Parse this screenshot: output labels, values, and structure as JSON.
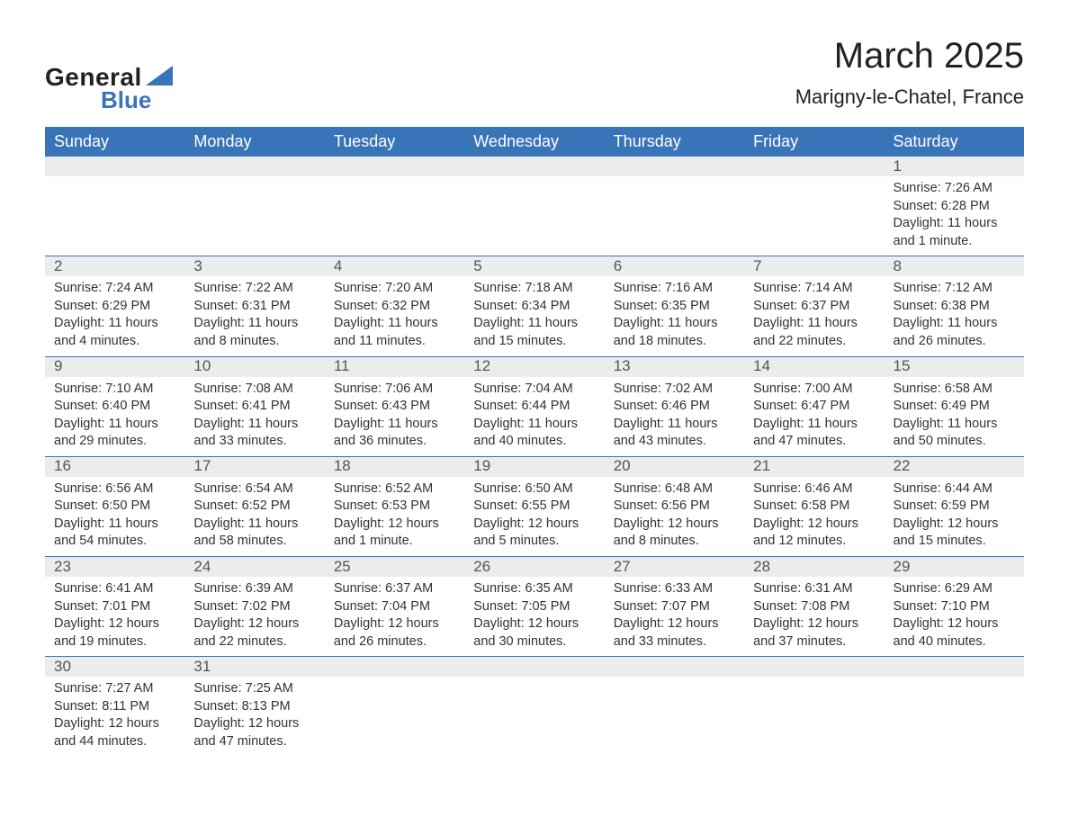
{
  "logo": {
    "text1": "General",
    "text2": "Blue",
    "accent_color": "#3a74b8"
  },
  "title": "March 2025",
  "location": "Marigny-le-Chatel, France",
  "colors": {
    "header_bg": "#3a74b8",
    "header_text": "#ffffff",
    "daynum_bg": "#ececec",
    "body_text": "#333333",
    "week_border": "#3a74b8"
  },
  "fonts": {
    "title_size_pt": 30,
    "location_size_pt": 17,
    "header_size_pt": 14,
    "body_size_pt": 11
  },
  "day_headers": [
    "Sunday",
    "Monday",
    "Tuesday",
    "Wednesday",
    "Thursday",
    "Friday",
    "Saturday"
  ],
  "weeks": [
    [
      null,
      null,
      null,
      null,
      null,
      null,
      {
        "n": "1",
        "sunrise": "Sunrise: 7:26 AM",
        "sunset": "Sunset: 6:28 PM",
        "daylight": "Daylight: 11 hours and 1 minute."
      }
    ],
    [
      {
        "n": "2",
        "sunrise": "Sunrise: 7:24 AM",
        "sunset": "Sunset: 6:29 PM",
        "daylight": "Daylight: 11 hours and 4 minutes."
      },
      {
        "n": "3",
        "sunrise": "Sunrise: 7:22 AM",
        "sunset": "Sunset: 6:31 PM",
        "daylight": "Daylight: 11 hours and 8 minutes."
      },
      {
        "n": "4",
        "sunrise": "Sunrise: 7:20 AM",
        "sunset": "Sunset: 6:32 PM",
        "daylight": "Daylight: 11 hours and 11 minutes."
      },
      {
        "n": "5",
        "sunrise": "Sunrise: 7:18 AM",
        "sunset": "Sunset: 6:34 PM",
        "daylight": "Daylight: 11 hours and 15 minutes."
      },
      {
        "n": "6",
        "sunrise": "Sunrise: 7:16 AM",
        "sunset": "Sunset: 6:35 PM",
        "daylight": "Daylight: 11 hours and 18 minutes."
      },
      {
        "n": "7",
        "sunrise": "Sunrise: 7:14 AM",
        "sunset": "Sunset: 6:37 PM",
        "daylight": "Daylight: 11 hours and 22 minutes."
      },
      {
        "n": "8",
        "sunrise": "Sunrise: 7:12 AM",
        "sunset": "Sunset: 6:38 PM",
        "daylight": "Daylight: 11 hours and 26 minutes."
      }
    ],
    [
      {
        "n": "9",
        "sunrise": "Sunrise: 7:10 AM",
        "sunset": "Sunset: 6:40 PM",
        "daylight": "Daylight: 11 hours and 29 minutes."
      },
      {
        "n": "10",
        "sunrise": "Sunrise: 7:08 AM",
        "sunset": "Sunset: 6:41 PM",
        "daylight": "Daylight: 11 hours and 33 minutes."
      },
      {
        "n": "11",
        "sunrise": "Sunrise: 7:06 AM",
        "sunset": "Sunset: 6:43 PM",
        "daylight": "Daylight: 11 hours and 36 minutes."
      },
      {
        "n": "12",
        "sunrise": "Sunrise: 7:04 AM",
        "sunset": "Sunset: 6:44 PM",
        "daylight": "Daylight: 11 hours and 40 minutes."
      },
      {
        "n": "13",
        "sunrise": "Sunrise: 7:02 AM",
        "sunset": "Sunset: 6:46 PM",
        "daylight": "Daylight: 11 hours and 43 minutes."
      },
      {
        "n": "14",
        "sunrise": "Sunrise: 7:00 AM",
        "sunset": "Sunset: 6:47 PM",
        "daylight": "Daylight: 11 hours and 47 minutes."
      },
      {
        "n": "15",
        "sunrise": "Sunrise: 6:58 AM",
        "sunset": "Sunset: 6:49 PM",
        "daylight": "Daylight: 11 hours and 50 minutes."
      }
    ],
    [
      {
        "n": "16",
        "sunrise": "Sunrise: 6:56 AM",
        "sunset": "Sunset: 6:50 PM",
        "daylight": "Daylight: 11 hours and 54 minutes."
      },
      {
        "n": "17",
        "sunrise": "Sunrise: 6:54 AM",
        "sunset": "Sunset: 6:52 PM",
        "daylight": "Daylight: 11 hours and 58 minutes."
      },
      {
        "n": "18",
        "sunrise": "Sunrise: 6:52 AM",
        "sunset": "Sunset: 6:53 PM",
        "daylight": "Daylight: 12 hours and 1 minute."
      },
      {
        "n": "19",
        "sunrise": "Sunrise: 6:50 AM",
        "sunset": "Sunset: 6:55 PM",
        "daylight": "Daylight: 12 hours and 5 minutes."
      },
      {
        "n": "20",
        "sunrise": "Sunrise: 6:48 AM",
        "sunset": "Sunset: 6:56 PM",
        "daylight": "Daylight: 12 hours and 8 minutes."
      },
      {
        "n": "21",
        "sunrise": "Sunrise: 6:46 AM",
        "sunset": "Sunset: 6:58 PM",
        "daylight": "Daylight: 12 hours and 12 minutes."
      },
      {
        "n": "22",
        "sunrise": "Sunrise: 6:44 AM",
        "sunset": "Sunset: 6:59 PM",
        "daylight": "Daylight: 12 hours and 15 minutes."
      }
    ],
    [
      {
        "n": "23",
        "sunrise": "Sunrise: 6:41 AM",
        "sunset": "Sunset: 7:01 PM",
        "daylight": "Daylight: 12 hours and 19 minutes."
      },
      {
        "n": "24",
        "sunrise": "Sunrise: 6:39 AM",
        "sunset": "Sunset: 7:02 PM",
        "daylight": "Daylight: 12 hours and 22 minutes."
      },
      {
        "n": "25",
        "sunrise": "Sunrise: 6:37 AM",
        "sunset": "Sunset: 7:04 PM",
        "daylight": "Daylight: 12 hours and 26 minutes."
      },
      {
        "n": "26",
        "sunrise": "Sunrise: 6:35 AM",
        "sunset": "Sunset: 7:05 PM",
        "daylight": "Daylight: 12 hours and 30 minutes."
      },
      {
        "n": "27",
        "sunrise": "Sunrise: 6:33 AM",
        "sunset": "Sunset: 7:07 PM",
        "daylight": "Daylight: 12 hours and 33 minutes."
      },
      {
        "n": "28",
        "sunrise": "Sunrise: 6:31 AM",
        "sunset": "Sunset: 7:08 PM",
        "daylight": "Daylight: 12 hours and 37 minutes."
      },
      {
        "n": "29",
        "sunrise": "Sunrise: 6:29 AM",
        "sunset": "Sunset: 7:10 PM",
        "daylight": "Daylight: 12 hours and 40 minutes."
      }
    ],
    [
      {
        "n": "30",
        "sunrise": "Sunrise: 7:27 AM",
        "sunset": "Sunset: 8:11 PM",
        "daylight": "Daylight: 12 hours and 44 minutes."
      },
      {
        "n": "31",
        "sunrise": "Sunrise: 7:25 AM",
        "sunset": "Sunset: 8:13 PM",
        "daylight": "Daylight: 12 hours and 47 minutes."
      },
      null,
      null,
      null,
      null,
      null
    ]
  ]
}
